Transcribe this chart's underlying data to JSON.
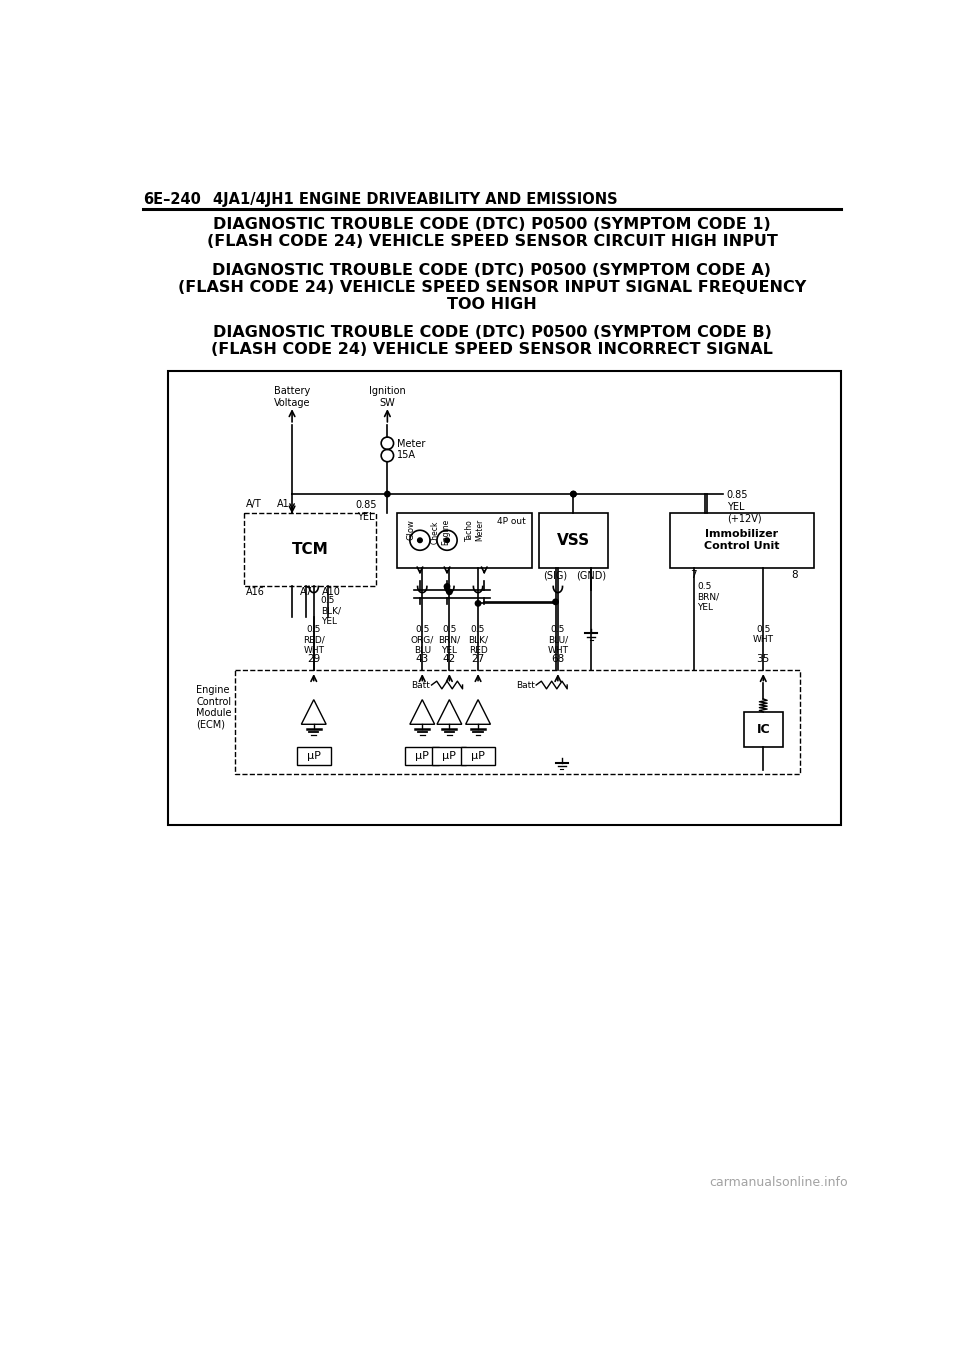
{
  "page_header_left": "6E–240",
  "page_header_right": "4JA1/4JH1 ENGINE DRIVEABILITY AND EMISSIONS",
  "title1_l1": "DIAGNOSTIC TROUBLE CODE (DTC) P0500 (SYMPTOM CODE 1)",
  "title1_l2": "(FLASH CODE 24) VEHICLE SPEED SENSOR CIRCUIT HIGH INPUT",
  "title2_l1": "DIAGNOSTIC TROUBLE CODE (DTC) P0500 (SYMPTOM CODE A)",
  "title2_l2": "(FLASH CODE 24) VEHICLE SPEED SENSOR INPUT SIGNAL FREQUENCY",
  "title2_l3": "TOO HIGH",
  "title3_l1": "DIAGNOSTIC TROUBLE CODE (DTC) P0500 (SYMPTOM CODE B)",
  "title3_l2": "(FLASH CODE 24) VEHICLE SPEED SENSOR INCORRECT SIGNAL",
  "watermark": "carmanualsonline.info",
  "bg_color": "#ffffff"
}
